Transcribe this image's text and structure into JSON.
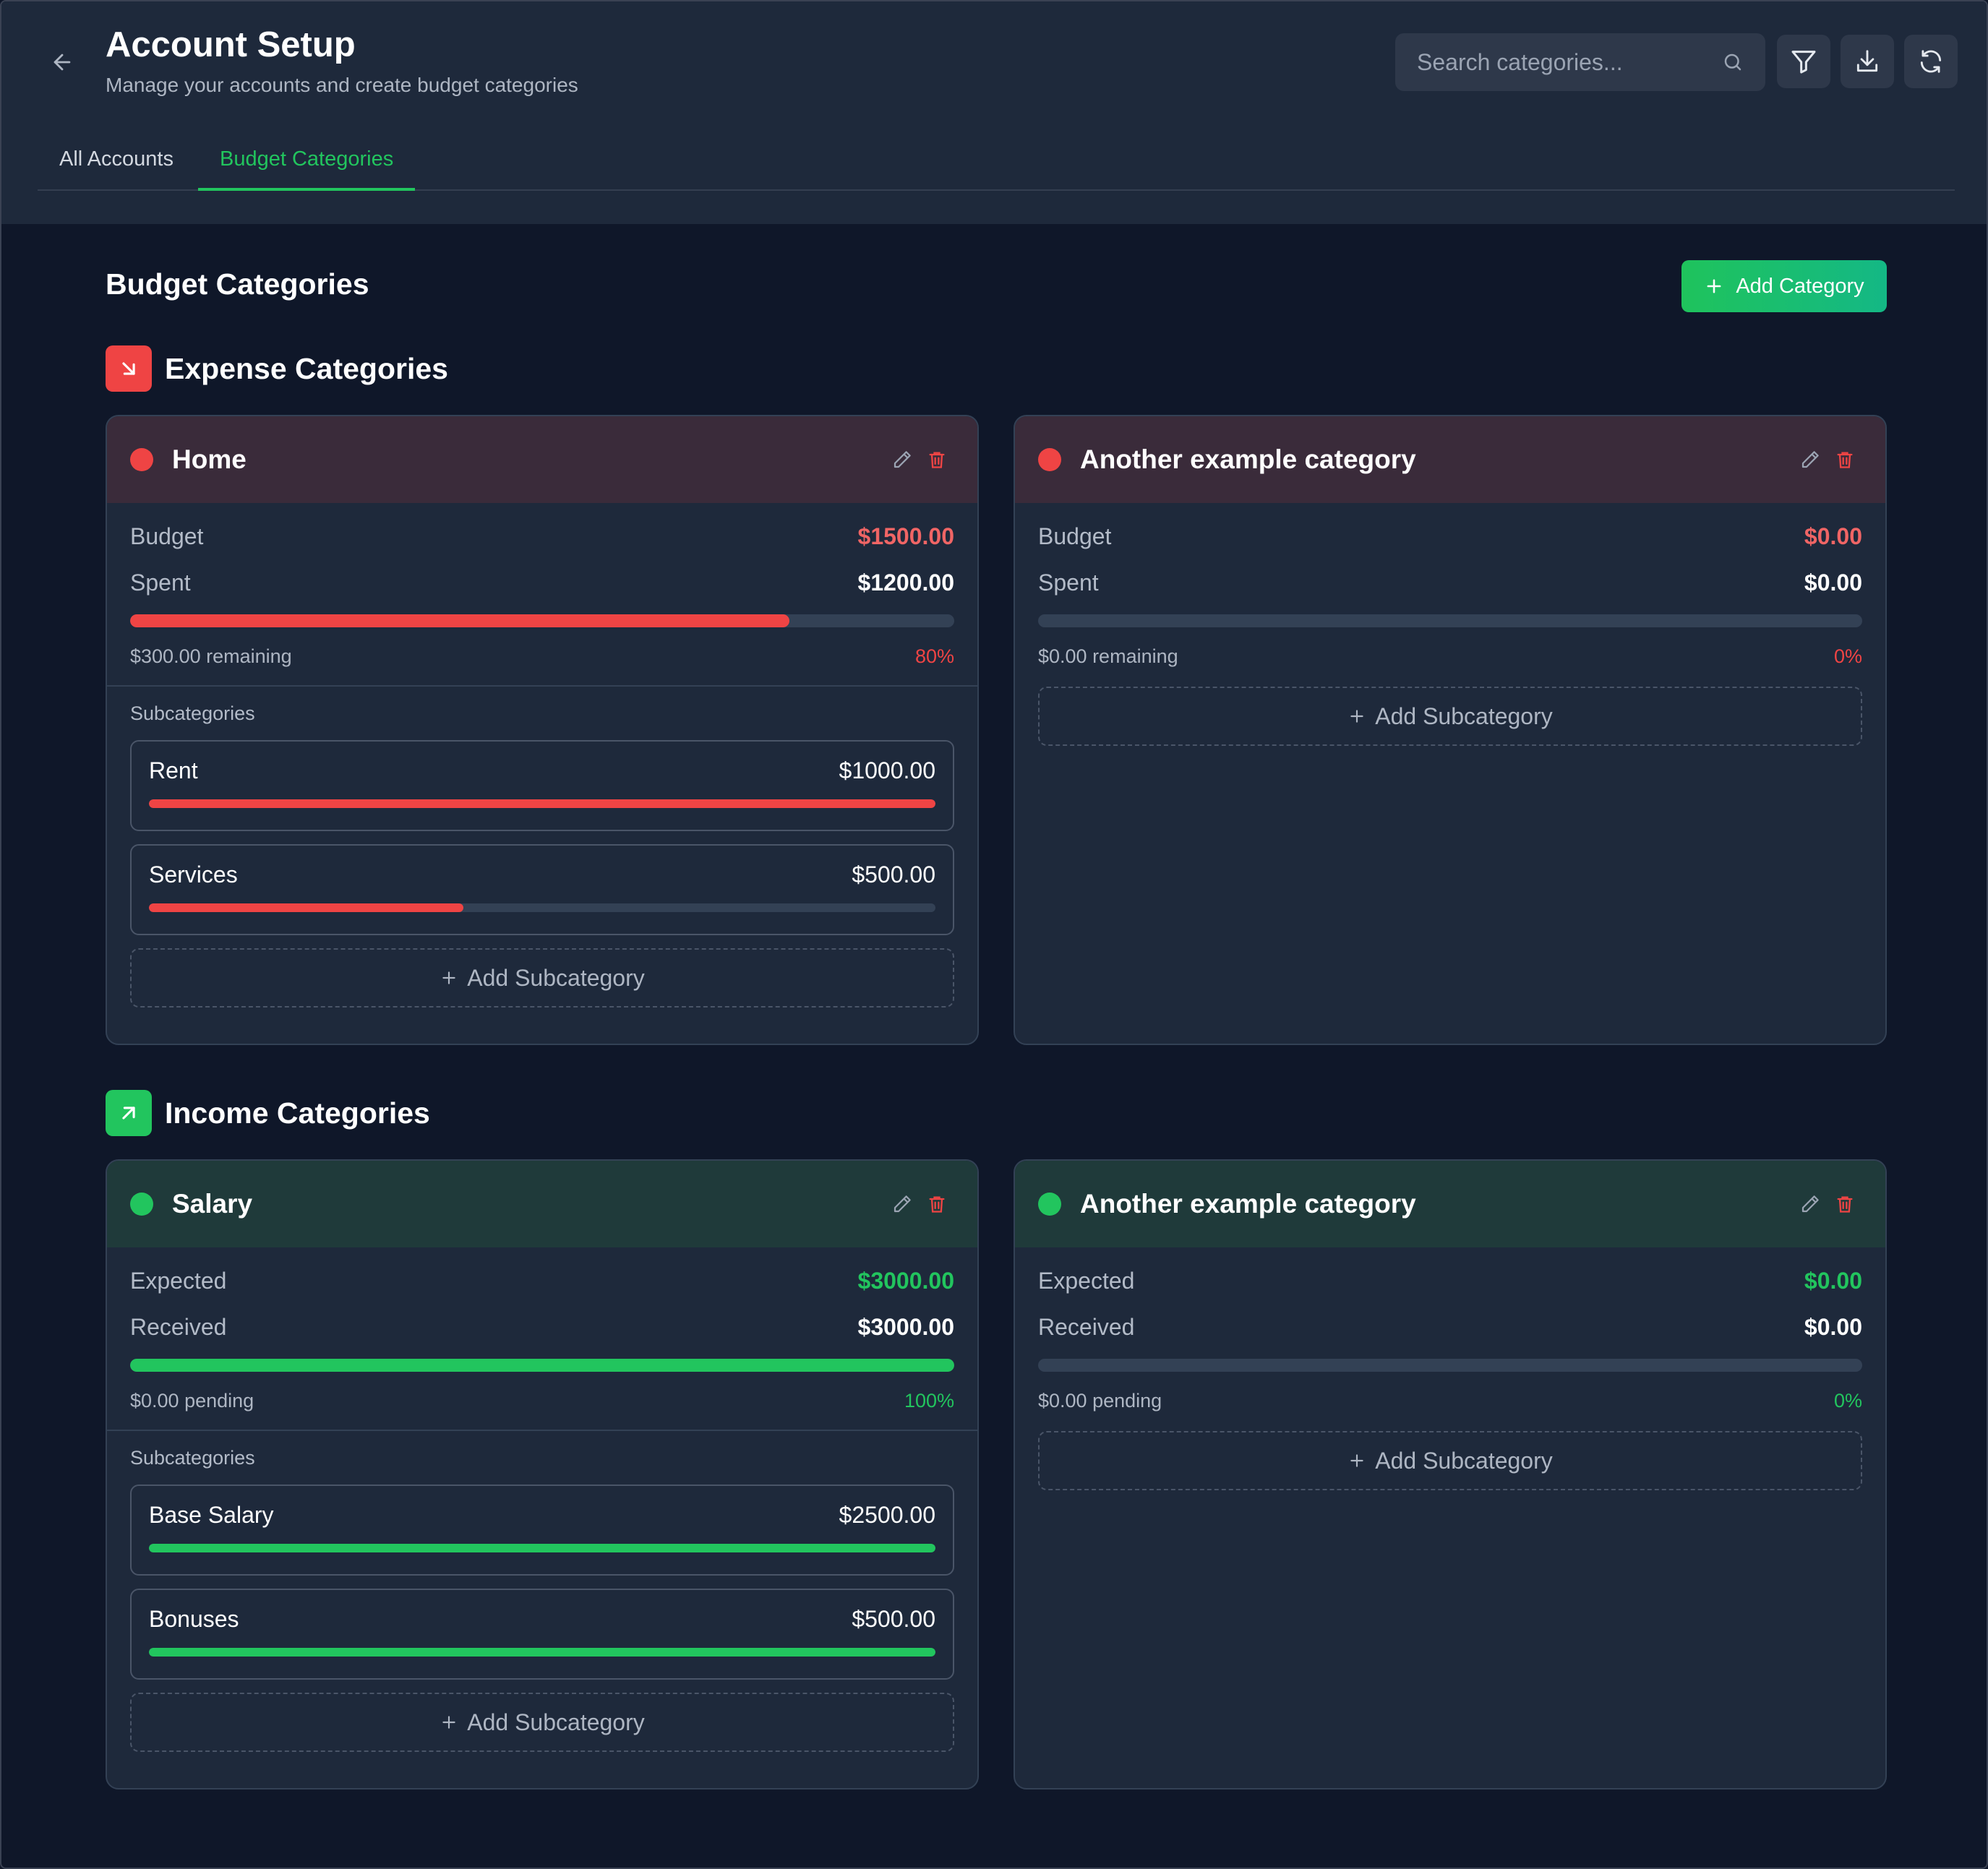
{
  "header": {
    "title": "Account Setup",
    "subtitle": "Manage your accounts and create budget categories",
    "search_placeholder": "Search categories...",
    "tabs": [
      {
        "label": "All Accounts",
        "active": false
      },
      {
        "label": "Budget Categories",
        "active": true
      }
    ]
  },
  "main": {
    "title": "Budget Categories",
    "add_category_label": "Add Category",
    "expense": {
      "title": "Expense Categories",
      "cards": [
        {
          "name": "Home",
          "row1_label": "Budget",
          "row1_value": "$1500.00",
          "row2_label": "Spent",
          "row2_value": "$1200.00",
          "progress": 0.8,
          "meta_left": "$300.00 remaining",
          "meta_right": "80%",
          "subcategories_label": "Subcategories",
          "subcategories": [
            {
              "name": "Rent",
              "amount": "$1000.00",
              "progress": 1.0
            },
            {
              "name": "Services",
              "amount": "$500.00",
              "progress": 0.4
            }
          ],
          "add_subcategory_label": "Add Subcategory"
        },
        {
          "name": "Another example category",
          "row1_label": "Budget",
          "row1_value": "$0.00",
          "row2_label": "Spent",
          "row2_value": "$0.00",
          "progress": 0,
          "meta_left": "$0.00 remaining",
          "meta_right": "0%",
          "subcategories": [],
          "add_subcategory_label": "Add Subcategory"
        }
      ]
    },
    "income": {
      "title": "Income Categories",
      "cards": [
        {
          "name": "Salary",
          "row1_label": "Expected",
          "row1_value": "$3000.00",
          "row2_label": "Received",
          "row2_value": "$3000.00",
          "progress": 1.0,
          "meta_left": "$0.00 pending",
          "meta_right": "100%",
          "subcategories_label": "Subcategories",
          "subcategories": [
            {
              "name": "Base Salary",
              "amount": "$2500.00",
              "progress": 1.0
            },
            {
              "name": "Bonuses",
              "amount": "$500.00",
              "progress": 1.0
            }
          ],
          "add_subcategory_label": "Add Subcategory"
        },
        {
          "name": "Another example category",
          "row1_label": "Expected",
          "row1_value": "$0.00",
          "row2_label": "Received",
          "row2_value": "$0.00",
          "progress": 0,
          "meta_left": "$0.00 pending",
          "meta_right": "0%",
          "subcategories": [],
          "add_subcategory_label": "Add Subcategory"
        }
      ]
    }
  },
  "colors": {
    "accent_green": "#22c55e",
    "expense_red": "#ef4444",
    "expense_value_red": "#f06565",
    "background": "#0f1729",
    "surface": "#1e293b"
  },
  "icons": [
    "back-arrow-icon",
    "search-icon",
    "filter-icon",
    "download-icon",
    "refresh-icon",
    "plus-icon",
    "arrow-down-right-icon",
    "arrow-up-right-icon",
    "pencil-icon",
    "trash-icon"
  ]
}
